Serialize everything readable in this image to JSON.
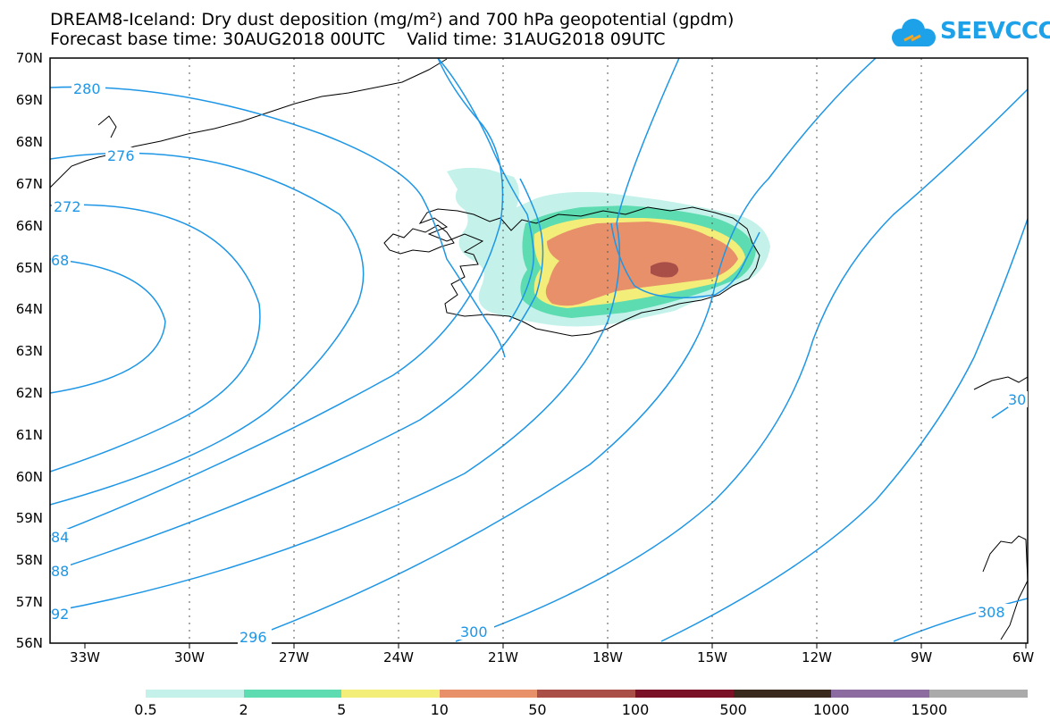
{
  "title": {
    "line1": "DREAM8-Iceland: Dry dust deposition (mg/m²) and 700 hPa geopotential (gpdm)",
    "line2": "Forecast base time: 30AUG2018 00UTC    Valid time: 31AUG2018 09UTC"
  },
  "logo": {
    "text": "SEEVCCC",
    "icon": "cloud-icon",
    "color": "#1da1e8"
  },
  "map": {
    "lat_labels": [
      "70N",
      "69N",
      "68N",
      "67N",
      "66N",
      "65N",
      "64N",
      "63N",
      "62N",
      "61N",
      "60N",
      "59N",
      "58N",
      "57N",
      "56N"
    ],
    "lon_labels": [
      "33W",
      "30W",
      "27W",
      "24W",
      "21W",
      "18W",
      "15W",
      "12W",
      "9W",
      "6W"
    ],
    "contour_color": "#1e96e6",
    "contour_labels": [
      "280",
      "276",
      "272",
      "68",
      "84",
      "88",
      "92",
      "296",
      "300",
      "308",
      "30"
    ]
  },
  "colorbar": {
    "colors": [
      "#c4f2ea",
      "#5cdcb0",
      "#f3ee7a",
      "#e8906a",
      "#aa4e48",
      "#7a1126",
      "#3a2a1e",
      "#8c6ca0",
      "#aaaaaa"
    ],
    "labels": [
      "0.5",
      "2",
      "5",
      "10",
      "50",
      "100",
      "500",
      "1000",
      "1500"
    ]
  }
}
